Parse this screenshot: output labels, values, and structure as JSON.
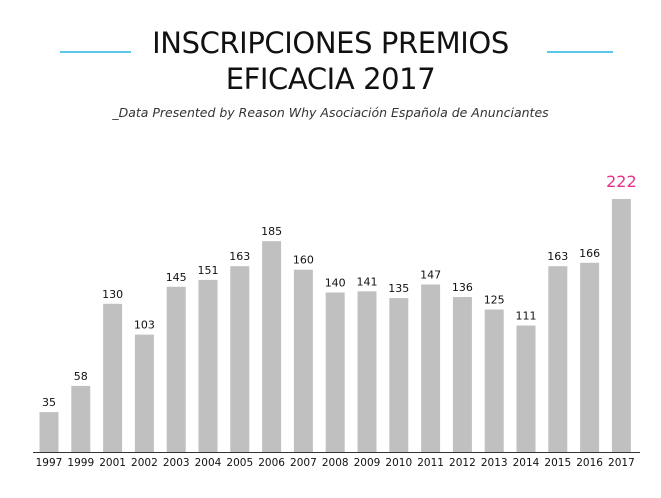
{
  "header": {
    "title_line1": "INSCRIPCIONES PREMIOS",
    "title_line2": "EFICACIA 2017",
    "subtitle": "_Data Presented by Reason Why Asociación Española de Anunciantes",
    "line_color": "#5bc8e8"
  },
  "chart_data": {
    "type": "bar",
    "title": "INSCRIPCIONES PREMIOS EFICACIA 2017",
    "subtitle": "_Data Presented by Reason Why Asociación Española de Anunciantes",
    "xlabel": "",
    "ylabel": "",
    "categories": [
      "1997",
      "1999",
      "2001",
      "2002",
      "2003",
      "2004",
      "2005",
      "2006",
      "2007",
      "2008",
      "2009",
      "2010",
      "2011",
      "2012",
      "2013",
      "2014",
      "2015",
      "2016",
      "2017"
    ],
    "values": [
      35,
      58,
      130,
      103,
      145,
      151,
      163,
      185,
      160,
      140,
      141,
      135,
      147,
      136,
      125,
      111,
      163,
      166,
      222
    ],
    "ylim": [
      0,
      222
    ],
    "grid": false,
    "legend": "none",
    "colors": {
      "bar": "#c0c0c0",
      "highlight_label": "#e8308a",
      "label": "#111111",
      "axis": "#333333"
    },
    "highlight_index": 18
  }
}
